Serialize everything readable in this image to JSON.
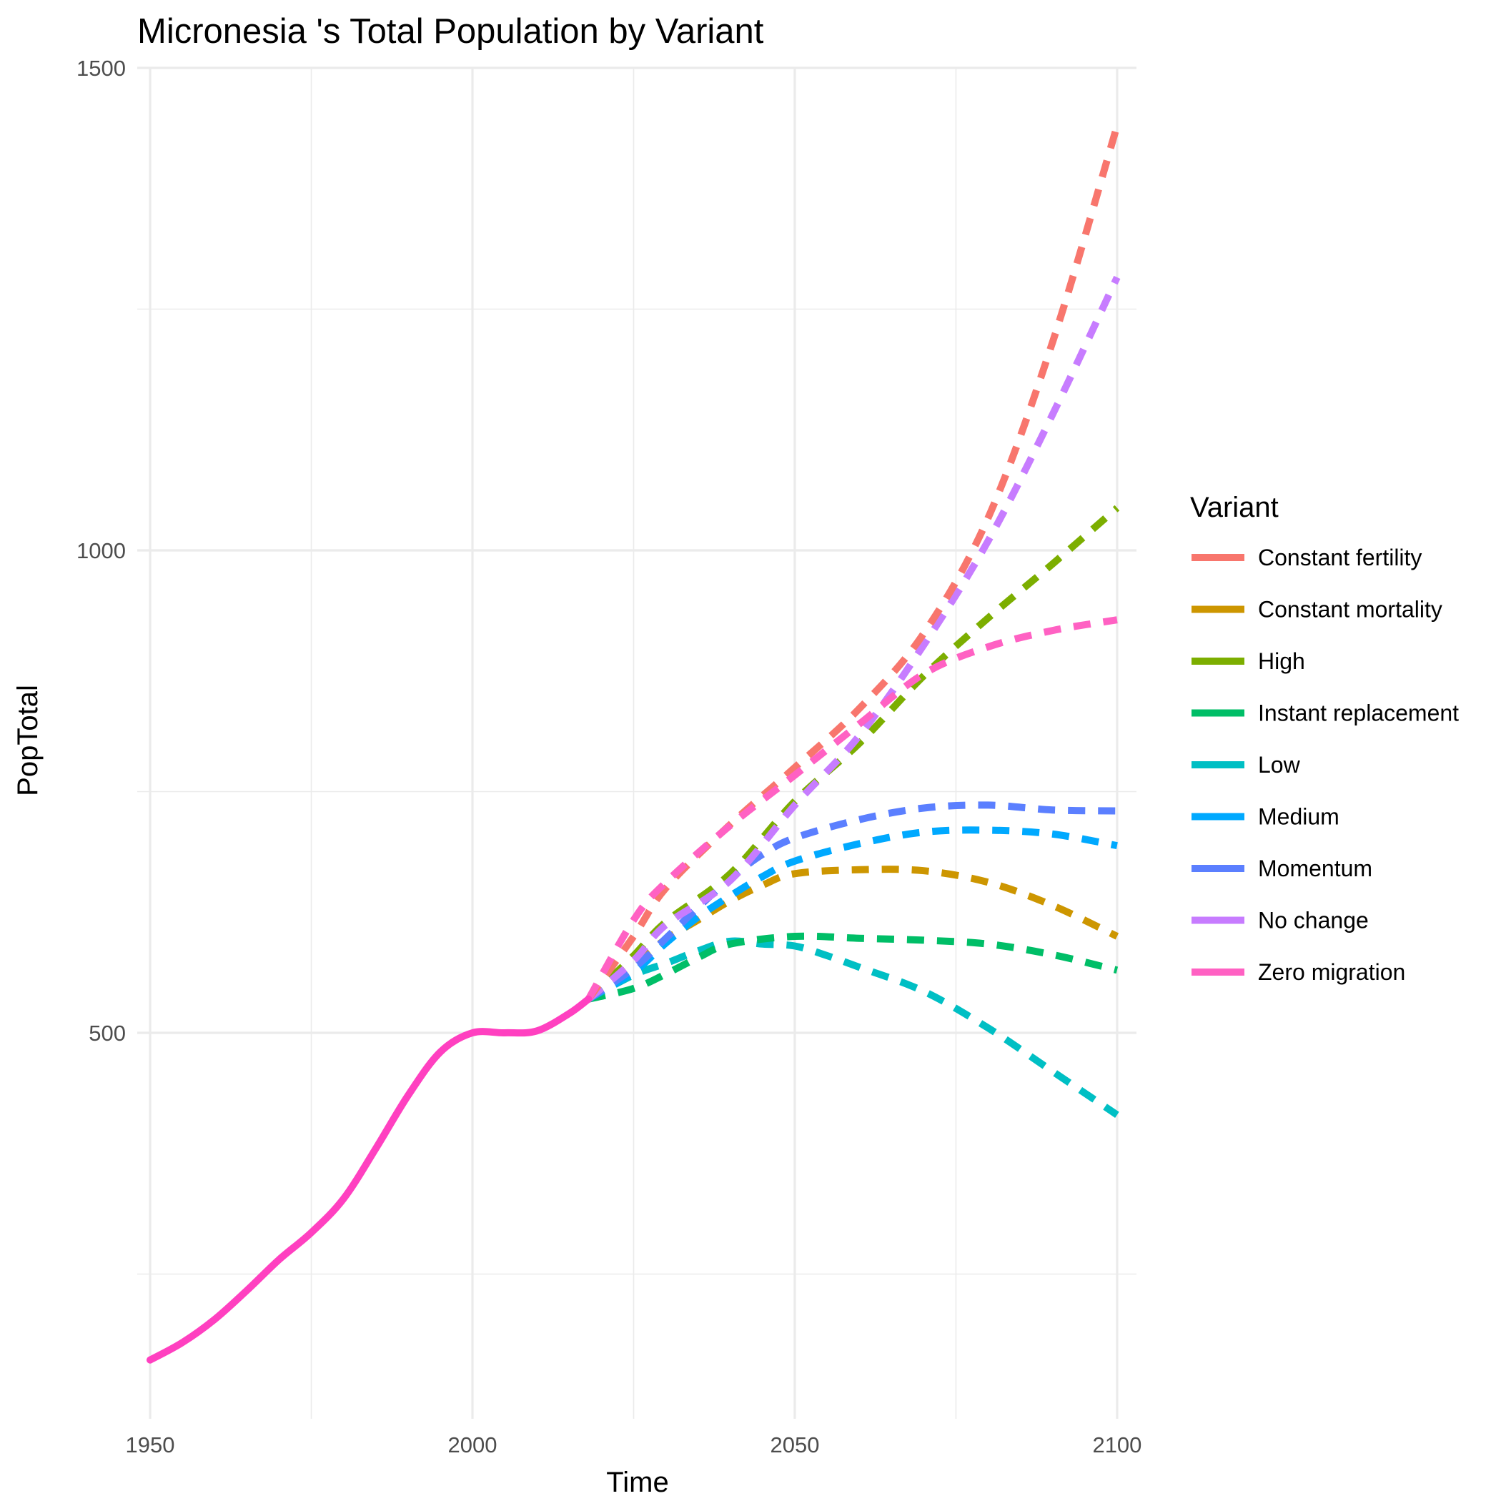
{
  "chart_data": {
    "type": "line",
    "title": "Micronesia 's Total Population by Variant",
    "xlabel": "Time",
    "ylabel": "PopTotal",
    "xlim": [
      1948,
      2103
    ],
    "ylim": [
      100,
      1500
    ],
    "x_ticks": [
      1950,
      2000,
      2050,
      2100
    ],
    "y_ticks": [
      500,
      1000,
      1500
    ],
    "grid": true,
    "legend_title": "Variant",
    "legend_position": "right",
    "history": {
      "x": [
        1950,
        1955,
        1960,
        1965,
        1970,
        1975,
        1980,
        1985,
        1990,
        1995,
        2000,
        2005,
        2010,
        2015,
        2018
      ],
      "y": [
        161,
        179,
        203,
        233,
        265,
        293,
        328,
        380,
        435,
        480,
        500,
        500,
        502,
        520,
        535
      ],
      "color": "#FF40C0"
    },
    "series": [
      {
        "name": "Constant fertility",
        "color": "#F8766D",
        "x": [
          2018,
          2025,
          2030,
          2040,
          2050,
          2060,
          2070,
          2080,
          2090,
          2100
        ],
        "y": [
          535,
          600,
          650,
          716,
          775,
          836,
          914,
          1034,
          1216,
          1440
        ]
      },
      {
        "name": "Constant mortality",
        "color": "#CD9600",
        "x": [
          2018,
          2025,
          2030,
          2035,
          2040,
          2045,
          2050,
          2060,
          2070,
          2080,
          2090,
          2100
        ],
        "y": [
          535,
          572,
          597,
          617,
          637,
          653,
          665,
          669,
          668,
          656,
          632,
          600
        ]
      },
      {
        "name": "High",
        "color": "#7CAE00",
        "x": [
          2018,
          2025,
          2030,
          2040,
          2050,
          2060,
          2070,
          2080,
          2090,
          2100
        ],
        "y": [
          535,
          580,
          615,
          665,
          740,
          800,
          870,
          930,
          986,
          1044
        ]
      },
      {
        "name": "Instant replacement",
        "color": "#00BE67",
        "x": [
          2018,
          2025,
          2030,
          2035,
          2040,
          2050,
          2060,
          2070,
          2080,
          2090,
          2100
        ],
        "y": [
          535,
          546,
          561,
          578,
          592,
          600,
          598,
          596,
          592,
          581,
          565
        ]
      },
      {
        "name": "Low",
        "color": "#00BFC4",
        "x": [
          2018,
          2025,
          2030,
          2035,
          2040,
          2045,
          2050,
          2055,
          2060,
          2070,
          2080,
          2090,
          2100
        ],
        "y": [
          535,
          560,
          572,
          585,
          595,
          592,
          590,
          580,
          568,
          543,
          505,
          460,
          415
        ]
      },
      {
        "name": "Medium",
        "color": "#00A9FF",
        "x": [
          2018,
          2025,
          2030,
          2035,
          2040,
          2045,
          2050,
          2060,
          2070,
          2080,
          2090,
          2100
        ],
        "y": [
          535,
          563,
          593,
          620,
          642,
          662,
          678,
          696,
          708,
          710,
          706,
          694
        ]
      },
      {
        "name": "Momentum",
        "color": "#5B7FFF",
        "x": [
          2018,
          2025,
          2030,
          2035,
          2040,
          2045,
          2050,
          2060,
          2070,
          2080,
          2090,
          2100
        ],
        "y": [
          535,
          567,
          598,
          630,
          660,
          685,
          702,
          721,
          733,
          736,
          731,
          730
        ]
      },
      {
        "name": "No change",
        "color": "#C77CFF",
        "x": [
          2018,
          2025,
          2030,
          2040,
          2050,
          2060,
          2070,
          2080,
          2090,
          2100
        ],
        "y": [
          535,
          575,
          612,
          658,
          736,
          808,
          902,
          1010,
          1141,
          1283
        ]
      },
      {
        "name": "Zero migration",
        "color": "#FF61C3",
        "x": [
          2018,
          2025,
          2030,
          2040,
          2050,
          2060,
          2070,
          2080,
          2090,
          2100
        ],
        "y": [
          535,
          617,
          656,
          715,
          767,
          820,
          872,
          900,
          917,
          928
        ]
      }
    ]
  }
}
